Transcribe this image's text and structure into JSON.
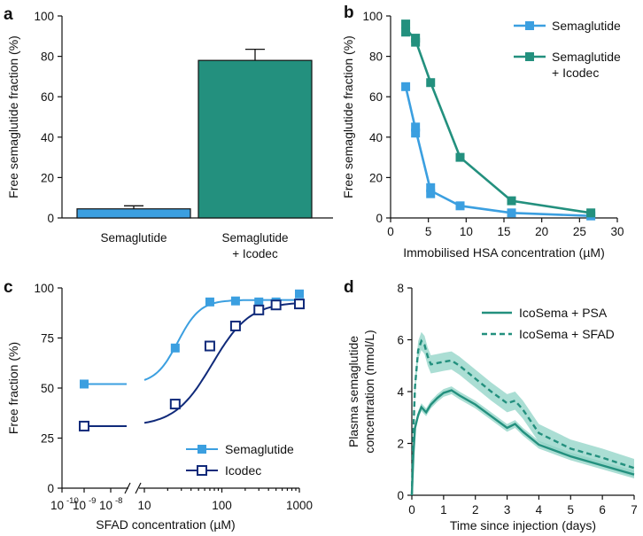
{
  "colors": {
    "semaglutide": "#3b9fe0",
    "icodec_teal": "#23907e",
    "icodec_navy": "#102a7a",
    "icosema_band": "#8fd3c6",
    "axis": "#111111"
  },
  "panel_letters": [
    "a",
    "b",
    "c",
    "d"
  ],
  "chart_data": [
    {
      "panel": "a",
      "type": "bar",
      "categories": [
        "Semaglutide",
        "Semaglutide\n+ Icodec"
      ],
      "category_lines": [
        [
          "Semaglutide"
        ],
        [
          "Semaglutide",
          "+ Icodec"
        ]
      ],
      "values": [
        4.5,
        78
      ],
      "errors": [
        1.5,
        5.5
      ],
      "bar_colors": [
        "#3b9fe0",
        "#23907e"
      ],
      "ylabel": "Free semaglutide fraction (%)",
      "xlabel": "",
      "ylim": [
        0,
        100
      ],
      "yticks": [
        0,
        20,
        40,
        60,
        80,
        100
      ]
    },
    {
      "panel": "b",
      "type": "line",
      "xlabel": "Immobilised HSA concentration (µM)",
      "ylabel": "Free semaglutide fraction (%)",
      "xlim": [
        0,
        30
      ],
      "ylim": [
        0,
        100
      ],
      "xticks": [
        0,
        5,
        10,
        15,
        20,
        25,
        30
      ],
      "yticks": [
        0,
        20,
        40,
        60,
        80,
        100
      ],
      "legend_position": "top-right",
      "series": [
        {
          "name": "Semaglutide",
          "color": "#3b9fe0",
          "x": [
            2,
            3.3,
            5.3,
            9.2,
            16,
            26.5
          ],
          "y": [
            65,
            44,
            13.5,
            6,
            2.5,
            1
          ],
          "points": [
            [
              2,
              65
            ],
            [
              3.3,
              42
            ],
            [
              3.3,
              45
            ],
            [
              5.3,
              12
            ],
            [
              5.3,
              15
            ],
            [
              9.2,
              6
            ],
            [
              16,
              2.5
            ],
            [
              26.5,
              1
            ]
          ]
        },
        {
          "name": "Semaglutide\n+ Icodec",
          "legend_lines": [
            "Semaglutide",
            "+ Icodec"
          ],
          "color": "#23907e",
          "x": [
            2,
            3.3,
            5.3,
            9.2,
            16,
            26.5
          ],
          "y": [
            94,
            88,
            67,
            30,
            8.5,
            2.5
          ],
          "points": [
            [
              2,
              92
            ],
            [
              2,
              96
            ],
            [
              3.3,
              87
            ],
            [
              3.3,
              89
            ],
            [
              5.3,
              67
            ],
            [
              9.2,
              30
            ],
            [
              16,
              8.5
            ],
            [
              26.5,
              2.5
            ]
          ]
        }
      ]
    },
    {
      "panel": "c",
      "type": "line",
      "xlabel": "SFAD concentration (µM)",
      "ylabel": "Free fraction (%)",
      "xscale": "log",
      "xlim": [
        10,
        1000
      ],
      "ylim": [
        0,
        100
      ],
      "yticks": [
        0,
        25,
        50,
        75,
        100
      ],
      "xtick_labels_left": [
        "10",
        "-10",
        "10",
        "-9",
        "10",
        "-8"
      ],
      "xticks_main": [
        10,
        100,
        1000
      ],
      "xtick_labels_main": [
        "10",
        "100",
        "1000"
      ],
      "baseline_x_label": "10-9",
      "legend_position": "bottom-right",
      "series": [
        {
          "name": "Semaglutide",
          "color": "#3b9fe0",
          "marker": "filled-square",
          "baseline": 52,
          "x": [
            25,
            70,
            150,
            300,
            500,
            1000
          ],
          "y": [
            70,
            93,
            93.5,
            93,
            93,
            97
          ],
          "fit": {
            "bottom": 52,
            "top": 94,
            "ec50": 27,
            "hill": 3
          }
        },
        {
          "name": "Icodec",
          "color": "#102a7a",
          "marker": "open-square",
          "baseline": 31,
          "x": [
            25,
            70,
            150,
            300,
            500,
            1000
          ],
          "y": [
            42,
            71,
            81,
            89,
            91.5,
            92
          ],
          "fit": {
            "bottom": 31,
            "top": 93,
            "ec50": 75,
            "hill": 1.8
          }
        }
      ]
    },
    {
      "panel": "d",
      "type": "line",
      "xlabel": "Time since injection (days)",
      "ylabel_lines": [
        "Plasma semaglutide",
        "concentration (nmol/L)"
      ],
      "xlim": [
        0,
        7
      ],
      "ylim": [
        0,
        8
      ],
      "xticks": [
        0,
        1,
        2,
        3,
        4,
        5,
        6,
        7
      ],
      "yticks": [
        0,
        2,
        4,
        6,
        8
      ],
      "legend_position": "top-right",
      "series": [
        {
          "name": "IcoSema + PSA",
          "color": "#23907e",
          "dash": "solid",
          "x": [
            0,
            0.05,
            0.1,
            0.2,
            0.3,
            0.45,
            0.6,
            0.8,
            1,
            1.25,
            1.5,
            2,
            2.5,
            3,
            3.25,
            3.5,
            4,
            5,
            6,
            7
          ],
          "y": [
            0,
            1.6,
            2.6,
            3.1,
            3.4,
            3.2,
            3.5,
            3.75,
            3.95,
            4.05,
            3.85,
            3.5,
            3.05,
            2.6,
            2.75,
            2.45,
            1.95,
            1.5,
            1.15,
            0.8
          ],
          "band": 0.15
        },
        {
          "name": "IcoSema + SFAD",
          "color": "#23907e",
          "dash": "dashed",
          "x": [
            0,
            0.05,
            0.1,
            0.2,
            0.3,
            0.4,
            0.5,
            0.6,
            0.8,
            1,
            1.25,
            1.5,
            2,
            2.5,
            3,
            3.25,
            3.5,
            4,
            5,
            6,
            7
          ],
          "y": [
            0,
            2.5,
            4.2,
            5.6,
            5.95,
            5.8,
            5.35,
            5.05,
            5.1,
            5.15,
            5.2,
            5.0,
            4.5,
            4.0,
            3.55,
            3.65,
            3.3,
            2.4,
            1.8,
            1.45,
            1.05
          ],
          "band": 0.35
        }
      ]
    }
  ]
}
